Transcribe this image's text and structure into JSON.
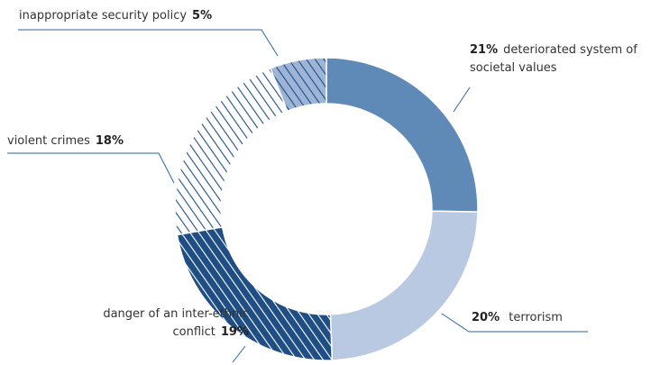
{
  "chart_data": {
    "type": "donut",
    "categories": [
      "deteriorated system of societal values",
      "terrorism",
      "danger of an inter-ethnic conflict",
      "violent crimes",
      "inappropriate security policy"
    ],
    "values": [
      21,
      20,
      19,
      18,
      5
    ],
    "value_labels": [
      "21%",
      "20%",
      "19%",
      "18%",
      "5%"
    ],
    "colors": [
      "#5f8ab8",
      "#b8c9e1",
      "#1f4e84",
      "#ffffff",
      "#9db4d6"
    ],
    "hatched": [
      false,
      false,
      true,
      true,
      true
    ],
    "hatch_colors": [
      null,
      null,
      "#ffffff",
      "#1f4e84",
      "#1f4e84"
    ]
  }
}
